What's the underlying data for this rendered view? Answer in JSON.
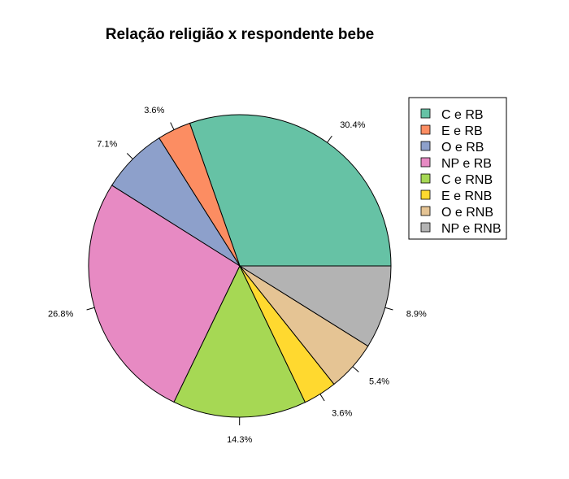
{
  "chart_data": {
    "type": "pie",
    "title": "Relação religião x respondente bebe",
    "categories": [
      "C e RB",
      "E e RB",
      "O e RB",
      "NP e RB",
      "C e RNB",
      "E e RNB",
      "O e RNB",
      "NP e RNB"
    ],
    "values": [
      30.4,
      3.6,
      7.1,
      26.8,
      14.3,
      3.6,
      5.4,
      8.9
    ],
    "labels": [
      "30.4%",
      "3.6%",
      "7.1%",
      "26.8%",
      "14.3%",
      "3.6%",
      "5.4%",
      "8.9%"
    ],
    "colors": [
      "#66c2a5",
      "#fc8d62",
      "#8da0cb",
      "#e78ac3",
      "#a6d854",
      "#ffd92f",
      "#e5c494",
      "#b3b3b3"
    ],
    "start": "3 o'clock",
    "direction": "counterclockwise",
    "legend_position": "top-right"
  }
}
